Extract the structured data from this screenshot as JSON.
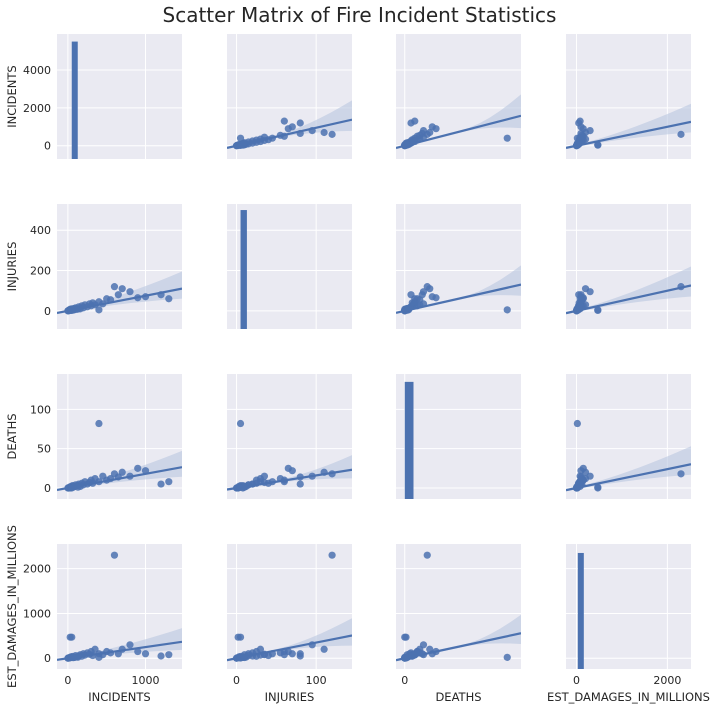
{
  "title": "Scatter Matrix of Fire Incident Statistics",
  "chart_data": {
    "type": "scatter",
    "title": "Scatter Matrix of Fire Incident Statistics",
    "variables": [
      "INCIDENTS",
      "INJURIES",
      "DEATHS",
      "EST_DAMAGES_IN_MILLIONS"
    ],
    "axis_labels": {
      "x": [
        "INCIDENTS",
        "INJURIES",
        "DEATHS",
        "EST_DAMAGES_IN_MILLIONS"
      ],
      "y": [
        "INCIDENTS",
        "INJURIES",
        "DEATHS",
        "EST_DAMAGES_IN_MILLIONS"
      ]
    },
    "ticks": {
      "INCIDENTS": [
        0,
        1000
      ],
      "INJURIES": [
        0,
        100
      ],
      "DEATHS": [
        0
      ],
      "EST_DAMAGES_IN_MILLIONS": [
        0,
        2000
      ]
    },
    "y_ticks": {
      "INCIDENTS": [
        0,
        2000,
        4000
      ],
      "INJURIES": [
        0,
        200,
        400
      ],
      "DEATHS": [
        0,
        50,
        100
      ],
      "EST_DAMAGES_IN_MILLIONS": [
        0,
        1000,
        2000
      ]
    },
    "ranges": {
      "INCIDENTS": [
        -140,
        1470
      ],
      "INJURIES": [
        -12,
        145
      ],
      "DEATHS": [
        -7,
        93
      ],
      "EST_DAMAGES_IN_MILLIONS": [
        -230,
        2520
      ]
    },
    "y_ranges": {
      "INCIDENTS": [
        -700,
        5900
      ],
      "INJURIES": [
        -90,
        530
      ],
      "DEATHS": [
        -14,
        145
      ],
      "EST_DAMAGES_IN_MILLIONS": [
        -240,
        2550
      ]
    },
    "diagonal_histograms": {
      "INCIDENTS": {
        "x_range": [
          50,
          110
        ],
        "count": 5500
      },
      "INJURIES": {
        "x_range": [
          5,
          13
        ],
        "count": 500
      },
      "DEATHS": {
        "x_range": [
          0,
          7
        ],
        "count": 135
      },
      "EST_DAMAGES_IN_MILLIONS": {
        "x_range": [
          30,
          150
        ],
        "count": 2350
      }
    },
    "points": [
      {
        "INCIDENTS": 0,
        "INJURIES": 0,
        "DEATHS": 0,
        "EST_DAMAGES_IN_MILLIONS": 0
      },
      {
        "INCIDENTS": 10,
        "INJURIES": 2,
        "DEATHS": 0,
        "EST_DAMAGES_IN_MILLIONS": 10
      },
      {
        "INCIDENTS": 20,
        "INJURIES": 5,
        "DEATHS": 1,
        "EST_DAMAGES_IN_MILLIONS": 5
      },
      {
        "INCIDENTS": 30,
        "INJURIES": 8,
        "DEATHS": 0,
        "EST_DAMAGES_IN_MILLIONS": 20
      },
      {
        "INCIDENTS": 40,
        "INJURIES": 3,
        "DEATHS": 2,
        "EST_DAMAGES_IN_MILLIONS": 30
      },
      {
        "INCIDENTS": 50,
        "INJURIES": 10,
        "DEATHS": 1,
        "EST_DAMAGES_IN_MILLIONS": 15
      },
      {
        "INCIDENTS": 60,
        "INJURIES": 5,
        "DEATHS": 3,
        "EST_DAMAGES_IN_MILLIONS": 40
      },
      {
        "INCIDENTS": 80,
        "INJURIES": 12,
        "DEATHS": 2,
        "EST_DAMAGES_IN_MILLIONS": 25
      },
      {
        "INCIDENTS": 100,
        "INJURIES": 15,
        "DEATHS": 4,
        "EST_DAMAGES_IN_MILLIONS": 60
      },
      {
        "INCIDENTS": 120,
        "INJURIES": 8,
        "DEATHS": 3,
        "EST_DAMAGES_IN_MILLIONS": 35
      },
      {
        "INCIDENTS": 140,
        "INJURIES": 20,
        "DEATHS": 5,
        "EST_DAMAGES_IN_MILLIONS": 50
      },
      {
        "INCIDENTS": 160,
        "INJURIES": 10,
        "DEATHS": 2,
        "EST_DAMAGES_IN_MILLIONS": 80
      },
      {
        "INCIDENTS": 180,
        "INJURIES": 25,
        "DEATHS": 6,
        "EST_DAMAGES_IN_MILLIONS": 45
      },
      {
        "INCIDENTS": 200,
        "INJURIES": 15,
        "DEATHS": 4,
        "EST_DAMAGES_IN_MILLIONS": 100
      },
      {
        "INCIDENTS": 220,
        "INJURIES": 30,
        "DEATHS": 8,
        "EST_DAMAGES_IN_MILLIONS": 70
      },
      {
        "INCIDENTS": 250,
        "INJURIES": 20,
        "DEATHS": 5,
        "EST_DAMAGES_IN_MILLIONS": 120
      },
      {
        "INCIDENTS": 280,
        "INJURIES": 35,
        "DEATHS": 7,
        "EST_DAMAGES_IN_MILLIONS": 90
      },
      {
        "INCIDENTS": 300,
        "INJURIES": 25,
        "DEATHS": 10,
        "EST_DAMAGES_IN_MILLIONS": 150
      },
      {
        "INCIDENTS": 320,
        "INJURIES": 40,
        "DEATHS": 6,
        "EST_DAMAGES_IN_MILLIONS": 60
      },
      {
        "INCIDENTS": 350,
        "INJURIES": 30,
        "DEATHS": 12,
        "EST_DAMAGES_IN_MILLIONS": 200
      },
      {
        "INCIDENTS": 400,
        "INJURIES": 45,
        "DEATHS": 8,
        "EST_DAMAGES_IN_MILLIONS": 100
      },
      {
        "INCIDENTS": 450,
        "INJURIES": 35,
        "DEATHS": 15,
        "EST_DAMAGES_IN_MILLIONS": 80
      },
      {
        "INCIDENTS": 500,
        "INJURIES": 60,
        "DEATHS": 10,
        "EST_DAMAGES_IN_MILLIONS": 150
      },
      {
        "INCIDENTS": 550,
        "INJURIES": 55,
        "DEATHS": 12,
        "EST_DAMAGES_IN_MILLIONS": 120
      },
      {
        "INCIDENTS": 600,
        "INJURIES": 120,
        "DEATHS": 18,
        "EST_DAMAGES_IN_MILLIONS": 2300
      },
      {
        "INCIDENTS": 650,
        "INJURIES": 80,
        "DEATHS": 14,
        "EST_DAMAGES_IN_MILLIONS": 100
      },
      {
        "INCIDENTS": 700,
        "INJURIES": 110,
        "DEATHS": 20,
        "EST_DAMAGES_IN_MILLIONS": 200
      },
      {
        "INCIDENTS": 900,
        "INJURIES": 65,
        "DEATHS": 25,
        "EST_DAMAGES_IN_MILLIONS": 150
      },
      {
        "INCIDENTS": 1000,
        "INJURIES": 70,
        "DEATHS": 22,
        "EST_DAMAGES_IN_MILLIONS": 100
      },
      {
        "INCIDENTS": 1200,
        "INJURIES": 80,
        "DEATHS": 5,
        "EST_DAMAGES_IN_MILLIONS": 50
      },
      {
        "INCIDENTS": 400,
        "INJURIES": 5,
        "DEATHS": 82,
        "EST_DAMAGES_IN_MILLIONS": 20
      },
      {
        "INCIDENTS": 50,
        "INJURIES": 2,
        "DEATHS": 0,
        "EST_DAMAGES_IN_MILLIONS": 470
      },
      {
        "INCIDENTS": 30,
        "INJURIES": 5,
        "DEATHS": 1,
        "EST_DAMAGES_IN_MILLIONS": 470
      },
      {
        "INCIDENTS": 800,
        "INJURIES": 95,
        "DEATHS": 15,
        "EST_DAMAGES_IN_MILLIONS": 300
      },
      {
        "INCIDENTS": 1300,
        "INJURIES": 60,
        "DEATHS": 8,
        "EST_DAMAGES_IN_MILLIONS": 80
      },
      {
        "INCIDENTS": 15,
        "INJURIES": 1,
        "DEATHS": 0,
        "EST_DAMAGES_IN_MILLIONS": 8
      },
      {
        "INCIDENTS": 5,
        "INJURIES": 0,
        "DEATHS": 0,
        "EST_DAMAGES_IN_MILLIONS": 3
      },
      {
        "INCIDENTS": 70,
        "INJURIES": 4,
        "DEATHS": 1,
        "EST_DAMAGES_IN_MILLIONS": 12
      },
      {
        "INCIDENTS": 90,
        "INJURIES": 6,
        "DEATHS": 2,
        "EST_DAMAGES_IN_MILLIONS": 18
      },
      {
        "INCIDENTS": 130,
        "INJURIES": 9,
        "DEATHS": 1,
        "EST_DAMAGES_IN_MILLIONS": 22
      }
    ],
    "regression": {
      "INCIDENTS": {
        "INJURIES": [
          0,
          0.075
        ],
        "DEATHS": [
          0,
          0.018
        ],
        "EST_DAMAGES_IN_MILLIONS": [
          0,
          0.25
        ]
      },
      "INJURIES": {
        "INCIDENTS": [
          0,
          9.5
        ],
        "DEATHS": [
          0,
          0.16
        ],
        "EST_DAMAGES_IN_MILLIONS": [
          0,
          3.5
        ]
      },
      "DEATHS": {
        "INCIDENTS": [
          0,
          17
        ],
        "INJURIES": [
          0,
          1.4
        ],
        "EST_DAMAGES_IN_MILLIONS": [
          0,
          6
        ]
      },
      "EST_DAMAGES_IN_MILLIONS": {
        "INCIDENTS": [
          0,
          0.5
        ],
        "INJURIES": [
          0,
          0.05
        ],
        "DEATHS": [
          0,
          0.012
        ]
      }
    },
    "colors": {
      "background": "#eaeaf2",
      "points": "#4c72b0",
      "line": "#4c72b0",
      "band": "#b9c6e0",
      "grid": "#ffffff",
      "text": "#262626"
    }
  }
}
